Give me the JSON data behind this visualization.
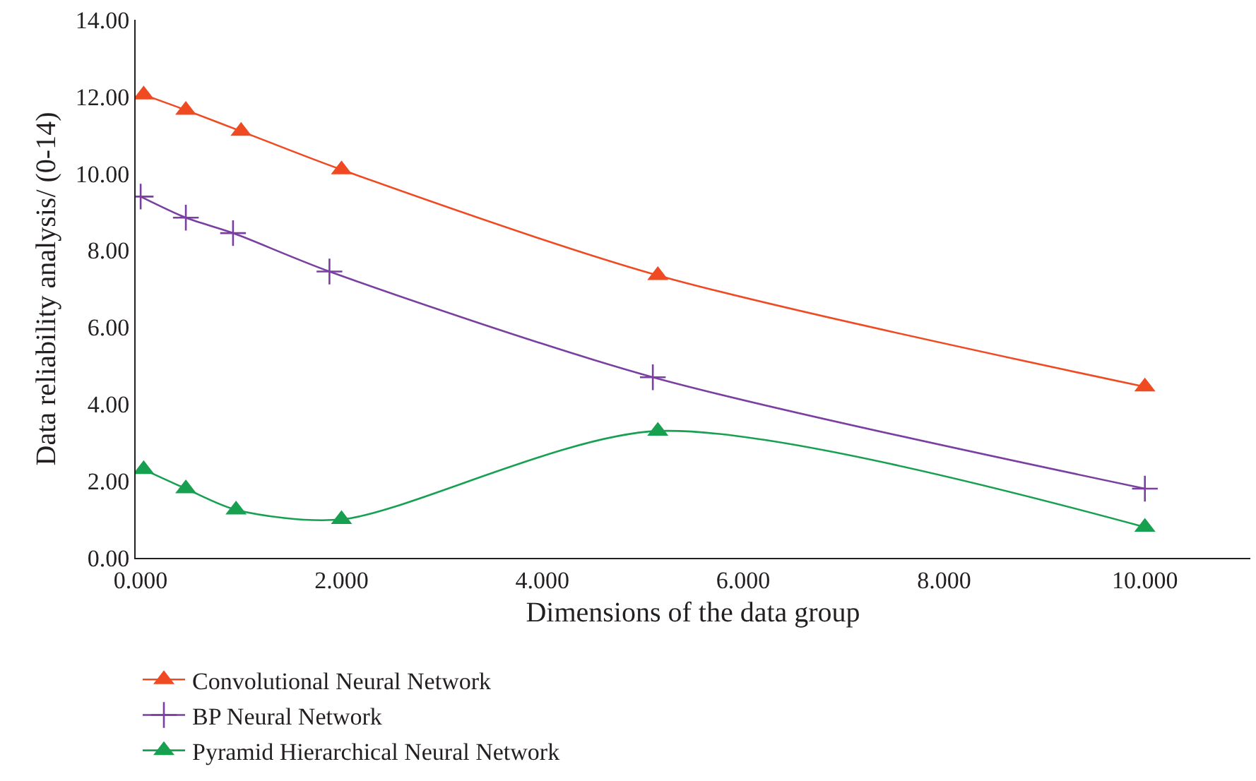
{
  "chart_data": {
    "type": "line",
    "xlabel": "Dimensions of the data group",
    "ylabel": "Data reliability analysis/ (0-14)",
    "series": [
      {
        "name": "Convolutional Neural Network",
        "color": "#f04a23",
        "marker": "triangle",
        "x": [
          0.03,
          0.45,
          1.0,
          2.0,
          5.15,
          10.0
        ],
        "values": [
          12.05,
          11.65,
          11.1,
          10.1,
          7.35,
          4.45
        ]
      },
      {
        "name": "BP Neural Network",
        "color": "#7a3fa0",
        "marker": "cross",
        "x": [
          0.0,
          0.45,
          0.92,
          1.88,
          5.1,
          10.0
        ],
        "values": [
          9.4,
          8.85,
          8.45,
          7.45,
          4.7,
          1.8
        ]
      },
      {
        "name": "Pyramid Hierarchical Neural Network",
        "color": "#16a050",
        "marker": "triangle",
        "x": [
          0.03,
          0.45,
          0.95,
          2.0,
          5.15,
          10.0
        ],
        "values": [
          2.3,
          1.8,
          1.25,
          1.0,
          3.3,
          0.8
        ]
      }
    ],
    "xlim": [
      -0.05,
      11.05
    ],
    "xticks": [
      {
        "value": 0,
        "label": "0.000"
      },
      {
        "value": 2,
        "label": "2.000"
      },
      {
        "value": 4,
        "label": "4.000"
      },
      {
        "value": 6,
        "label": "6.000"
      },
      {
        "value": 8,
        "label": "8.000"
      },
      {
        "value": 10,
        "label": "10.000"
      }
    ],
    "ylim": [
      0,
      14
    ],
    "yticks": [
      {
        "value": 0,
        "label": "0.00"
      },
      {
        "value": 2,
        "label": "2.00"
      },
      {
        "value": 4,
        "label": "4.00"
      },
      {
        "value": 6,
        "label": "6.00"
      },
      {
        "value": 8,
        "label": "8.00"
      },
      {
        "value": 10,
        "label": "10.00"
      },
      {
        "value": 12,
        "label": "12.00"
      },
      {
        "value": 14,
        "label": "14.00"
      }
    ],
    "grid": false,
    "legend": "bottom left",
    "line_style": "solid"
  }
}
